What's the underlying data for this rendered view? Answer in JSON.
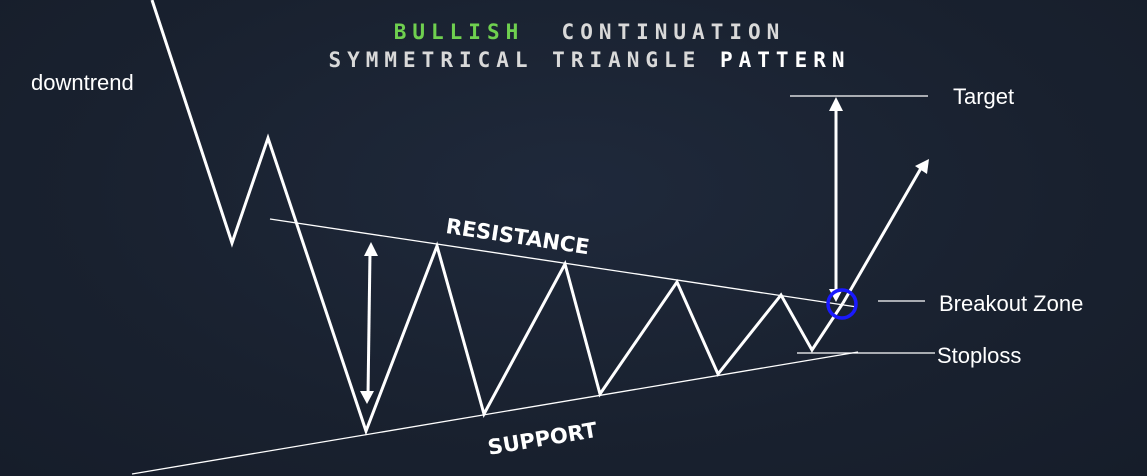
{
  "title": {
    "line1": {
      "bullish": "BULLISH",
      "rest": "CONTINUATION"
    },
    "line2": {
      "main": "SYMMETRICAL TRIANGLE",
      "end": "PATTERN"
    }
  },
  "labels": {
    "downtrend": "downtrend",
    "resistance": "RESISTANCE",
    "support": "SUPPORT",
    "target": "Target",
    "breakout_zone": "Breakout  Zone",
    "stoploss": "Stoploss"
  },
  "colors": {
    "background": "#1a2233",
    "line": "#ffffff",
    "accent_green": "#6fd04f",
    "breakout_circle": "#1a1aff"
  }
}
